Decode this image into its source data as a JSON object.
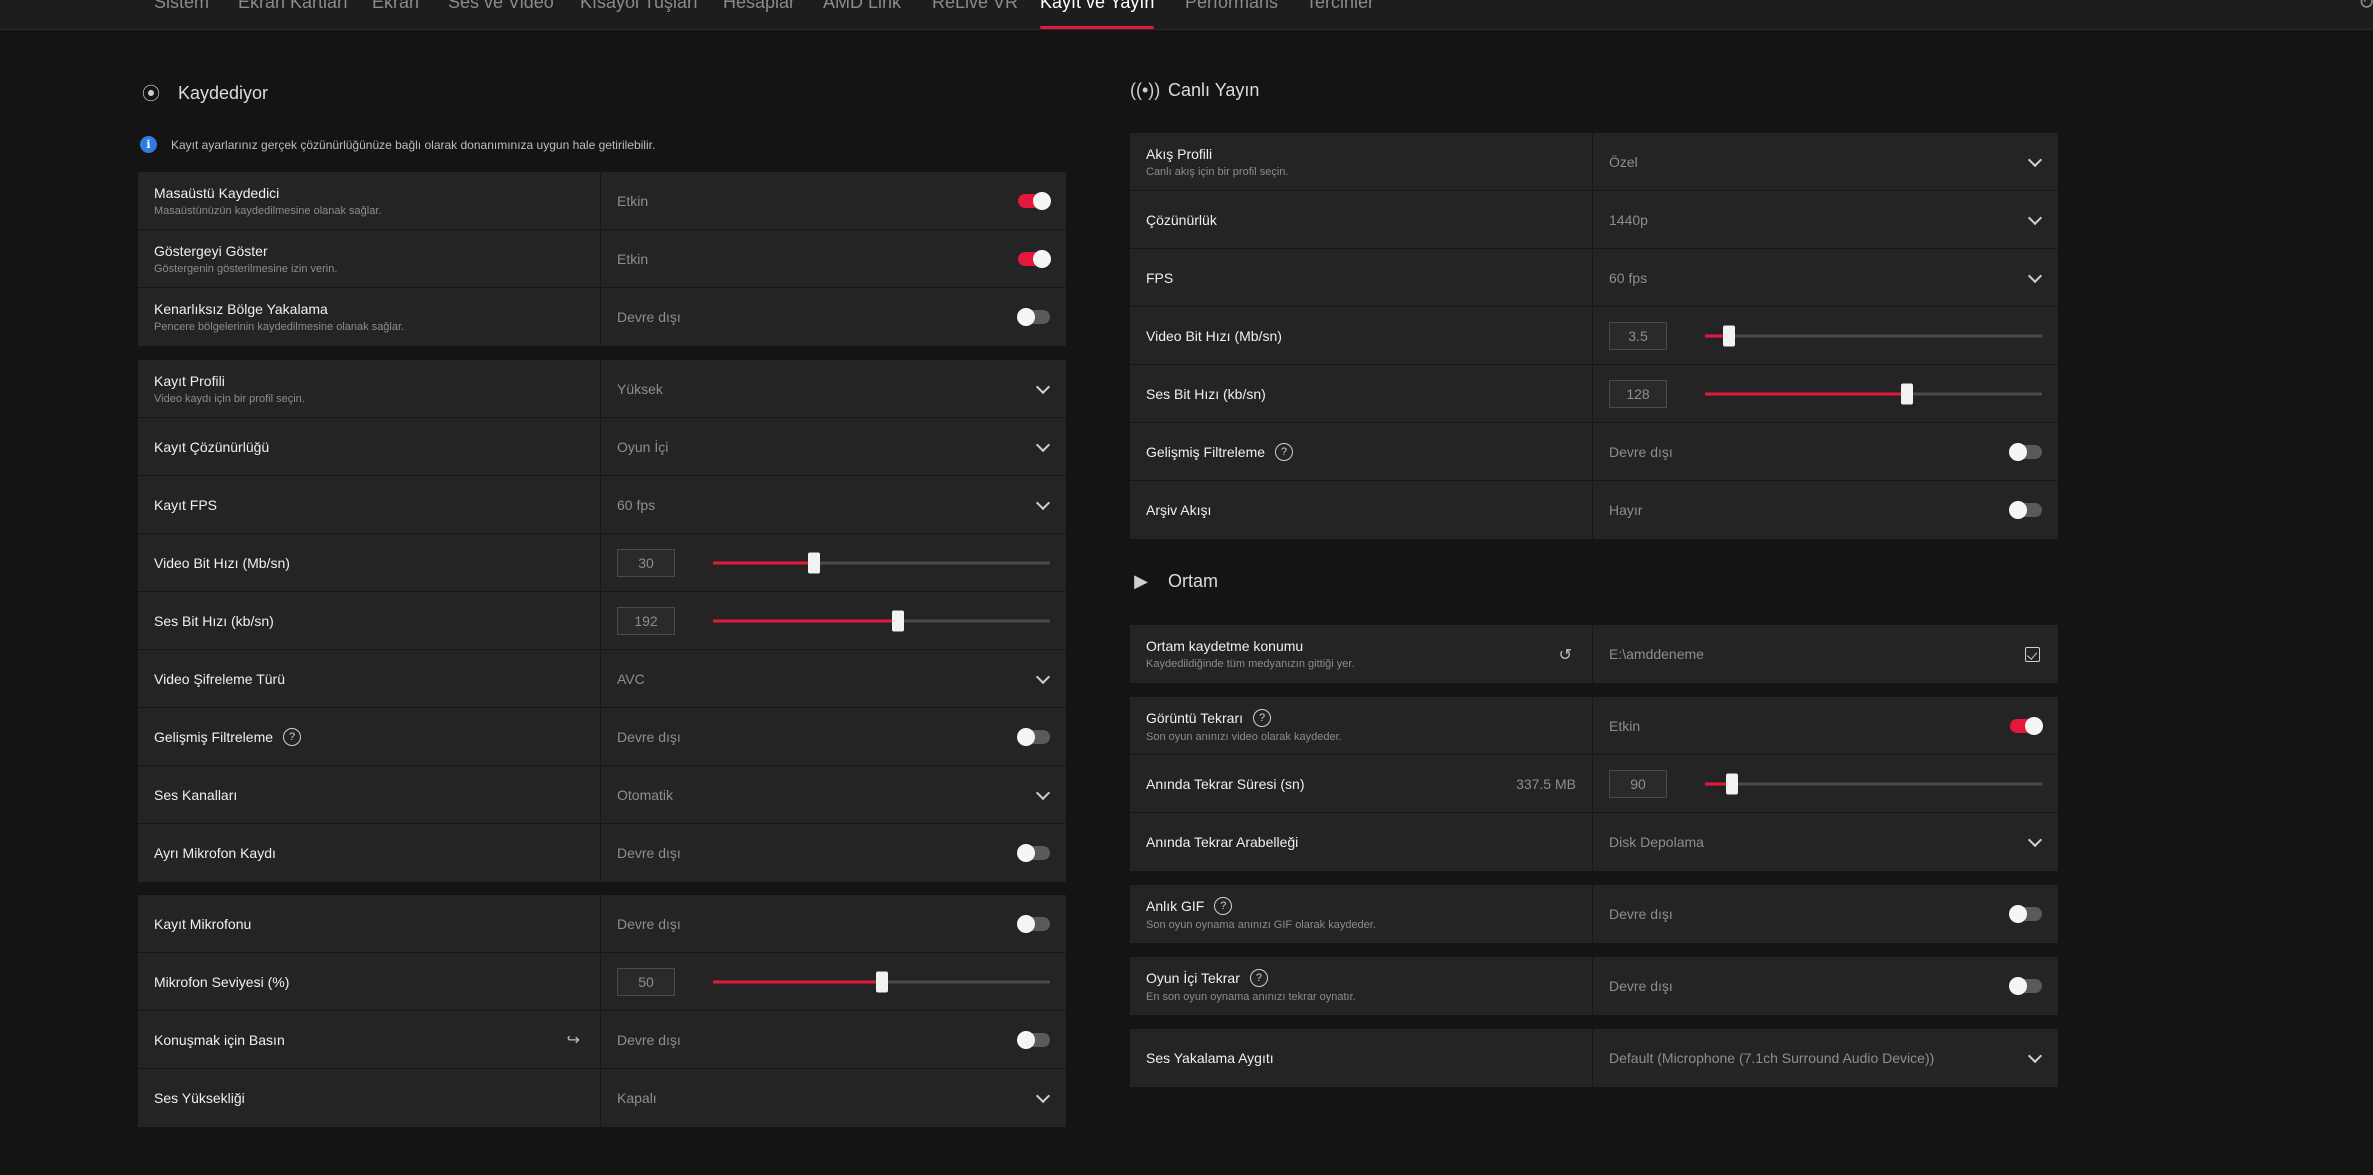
{
  "nav": {
    "tabs": [
      {
        "label": "Sistem"
      },
      {
        "label": "Ekran Kartları"
      },
      {
        "label": "Ekran"
      },
      {
        "label": "Ses ve Video"
      },
      {
        "label": "Kısayol Tuşları"
      },
      {
        "label": "Hesaplar"
      },
      {
        "label": "AMD Link"
      },
      {
        "label": "ReLive VR"
      },
      {
        "label": "Kayıt ve Yayın"
      },
      {
        "label": "Performans"
      },
      {
        "label": "Tercihler"
      }
    ],
    "active_tab": "Kayıt ve Yayın"
  },
  "recording": {
    "title": "Kaydediyor",
    "info": "Kayıt ayarlarınız gerçek çözünürlüğünüze bağlı olarak donanımınıza uygun hale getirilebilir.",
    "group1": [
      {
        "label": "Masaüstü Kaydedici",
        "desc": "Masaüstünüzün kaydedilmesine olanak sağlar.",
        "value": "Etkin",
        "on": true
      },
      {
        "label": "Göstergeyi Göster",
        "desc": "Göstergenin gösterilmesine izin verin.",
        "value": "Etkin",
        "on": true
      },
      {
        "label": "Kenarlıksız Bölge Yakalama",
        "desc": "Pencere bölgelerinin kaydedilmesine olanak sağlar.",
        "value": "Devre dışı",
        "on": false
      }
    ],
    "group2": {
      "profile": {
        "label": "Kayıt Profili",
        "desc": "Video kaydı için bir profil seçin.",
        "value": "Yüksek"
      },
      "resolution": {
        "label": "Kayıt Çözünürlüğü",
        "value": "Oyun İçi"
      },
      "fps": {
        "label": "Kayıt FPS",
        "value": "60 fps"
      },
      "video_bitrate": {
        "label": "Video Bit Hızı (Mb/sn)",
        "value": "30",
        "level": 0.3
      },
      "audio_bitrate": {
        "label": "Ses Bit Hızı (kb/sn)",
        "value": "192",
        "level": 0.55
      },
      "encoding": {
        "label": "Video Şifreleme Türü",
        "value": "AVC"
      },
      "filtering": {
        "label": "Gelişmiş Filtreleme",
        "value": "Devre dışı",
        "on": false
      },
      "channels": {
        "label": "Ses Kanalları",
        "value": "Otomatik"
      },
      "separate_mic": {
        "label": "Ayrı Mikrofon Kaydı",
        "value": "Devre dışı",
        "on": false
      }
    },
    "group3": {
      "mic": {
        "label": "Kayıt Mikrofonu",
        "value": "Devre dışı",
        "on": false
      },
      "mic_level": {
        "label": "Mikrofon Seviyesi (%)",
        "value": "50",
        "level": 0.5
      },
      "push_to_talk": {
        "label": "Konuşmak için Basın",
        "value": "Devre dışı",
        "on": false
      },
      "volume": {
        "label": "Ses Yüksekliği",
        "value": "Kapalı"
      }
    }
  },
  "streaming": {
    "title": "Canlı Yayın",
    "profile": {
      "label": "Akış Profili",
      "desc": "Canlı akış için bir profil seçin.",
      "value": "Özel"
    },
    "resolution": {
      "label": "Çözünürlük",
      "value": "1440p"
    },
    "fps": {
      "label": "FPS",
      "value": "60 fps"
    },
    "video_bitrate": {
      "label": "Video Bit Hızı (Mb/sn)",
      "value": "3.5",
      "level": 0.07
    },
    "audio_bitrate": {
      "label": "Ses Bit Hızı (kb/sn)",
      "value": "128",
      "level": 0.6
    },
    "filtering": {
      "label": "Gelişmiş Filtreleme",
      "value": "Devre dışı",
      "on": false
    },
    "archive": {
      "label": "Arşiv Akışı",
      "value": "Hayır",
      "on": false
    }
  },
  "media": {
    "title": "Ortam",
    "location": {
      "label": "Ortam kaydetme konumu",
      "desc": "Kaydedildiğinde tüm medyanızın gittiği yer.",
      "value": "E:\\amddeneme"
    },
    "replay": {
      "label": "Görüntü Tekrarı",
      "desc": "Son oyun anınızı video olarak kaydeder.",
      "value": "Etkin",
      "on": true
    },
    "replay_duration": {
      "label": "Anında Tekrar Süresi (sn)",
      "size": "337.5 MB",
      "value": "90",
      "level": 0.08
    },
    "replay_buffer": {
      "label": "Anında Tekrar Arabelleği",
      "value": "Disk Depolama"
    },
    "gif": {
      "label": "Anlık GIF",
      "desc": "Son oyun oynama anınızı GIF olarak kaydeder.",
      "value": "Devre dışı",
      "on": false
    },
    "ingame_replay": {
      "label": "Oyun İçi Tekrar",
      "desc": "En son oyun oynama anınızı tekrar oynatır.",
      "value": "Devre dışı",
      "on": false
    },
    "capture_device": {
      "label": "Ses Yakalama Aygıtı",
      "value": "Default (Microphone (7.1ch Surround Audio Device))"
    }
  }
}
